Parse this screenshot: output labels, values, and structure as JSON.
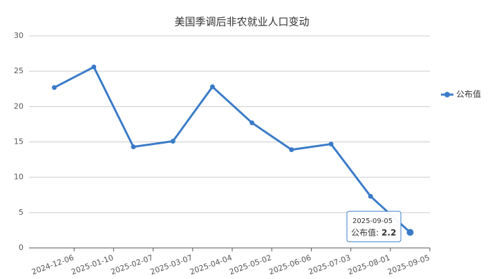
{
  "chart_data": {
    "type": "line",
    "title": "美国季调后非农就业人口变动",
    "categories": [
      "2024-12-06",
      "2025-01-10",
      "2025-02-07",
      "2025-03-07",
      "2025-04-04",
      "2025-05-02",
      "2025-06-06",
      "2025-07-03",
      "2025-08-01",
      "2025-09-05"
    ],
    "series": [
      {
        "name": "公布值",
        "color": "#3a7bc8",
        "values": [
          22.7,
          25.6,
          14.3,
          15.1,
          22.8,
          17.7,
          13.9,
          14.7,
          7.3,
          2.2
        ]
      }
    ],
    "ylim": [
      0,
      30
    ],
    "yticks": [
      0,
      5,
      10,
      15,
      20,
      25,
      30
    ],
    "grid": true,
    "legend": "right",
    "tooltip": {
      "title": "2025-09-05",
      "label": "公布值:",
      "value": 2.2
    }
  }
}
